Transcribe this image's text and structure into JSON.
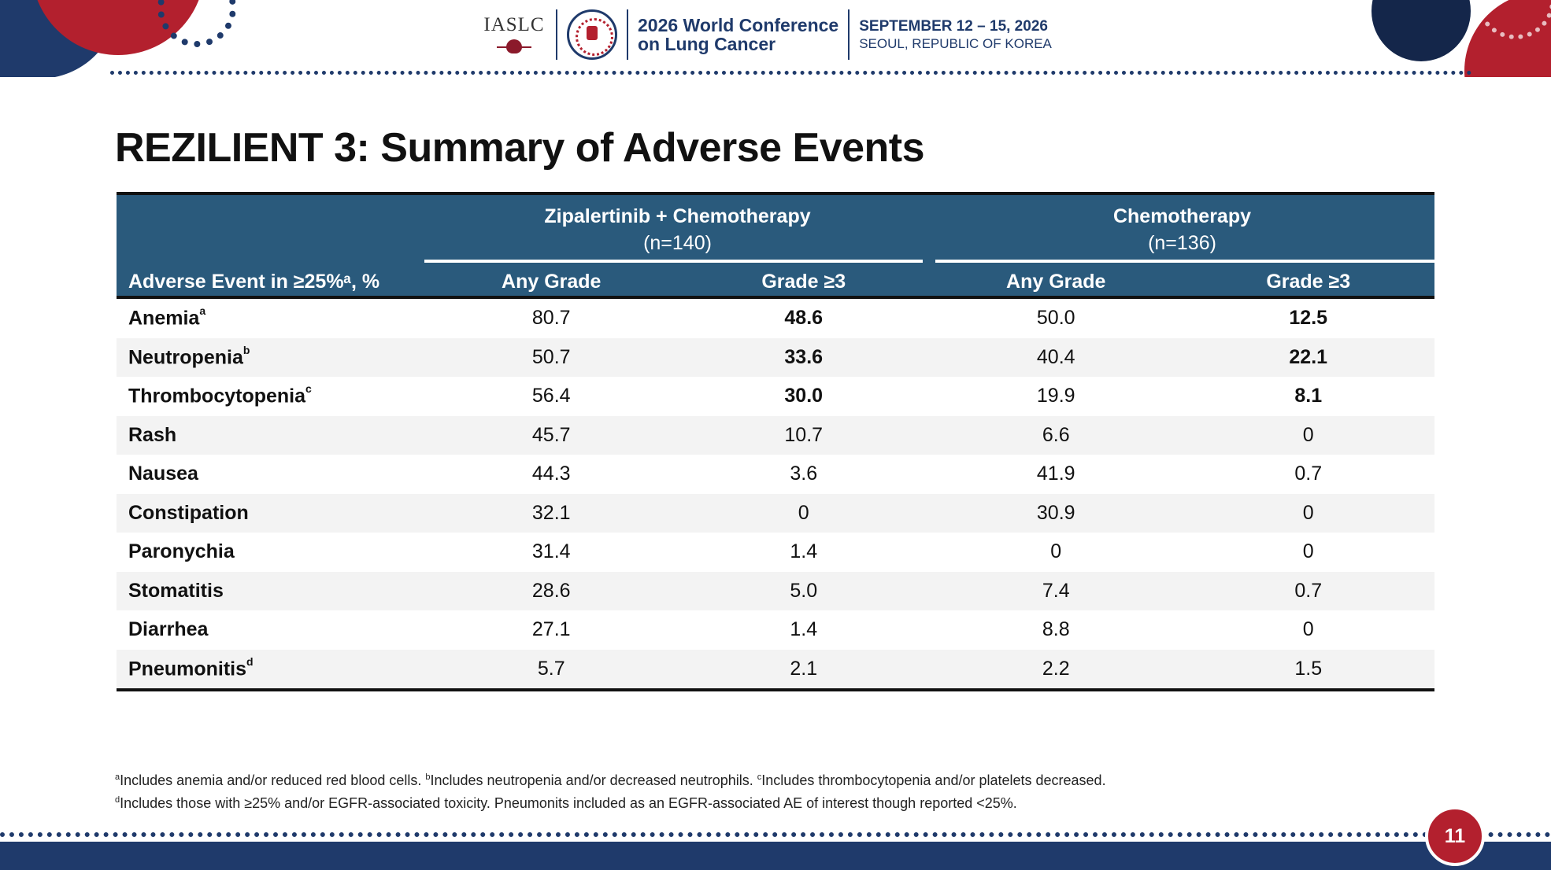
{
  "header": {
    "org": "IASLC",
    "conference_line1": "2026 World Conference",
    "conference_line2": "on Lung Cancer",
    "dates": "SEPTEMBER 12 – 15, 2026",
    "location": "SEOUL, REPUBLIC OF KOREA",
    "seal_text": "2026"
  },
  "title": "REZILIENT 3: Summary of Adverse Events",
  "table": {
    "label_header": "Adverse Event in ≥25%ᵃ, %",
    "groups": [
      {
        "name": "Zipalertinib + Chemotherapy",
        "n": "(n=140)"
      },
      {
        "name": "Chemotherapy",
        "n": "(n=136)"
      }
    ],
    "subheaders": [
      "Any Grade",
      "Grade ≥3",
      "Any Grade",
      "Grade ≥3"
    ],
    "rows": [
      {
        "event": "Anemia",
        "sup": "a",
        "values": [
          "80.7",
          "48.6",
          "50.0",
          "12.5"
        ],
        "bold": [
          false,
          true,
          false,
          true
        ]
      },
      {
        "event": "Neutropenia",
        "sup": "b",
        "values": [
          "50.7",
          "33.6",
          "40.4",
          "22.1"
        ],
        "bold": [
          false,
          true,
          false,
          true
        ]
      },
      {
        "event": "Thrombocytopenia",
        "sup": "c",
        "values": [
          "56.4",
          "30.0",
          "19.9",
          "8.1"
        ],
        "bold": [
          false,
          true,
          false,
          true
        ]
      },
      {
        "event": "Rash",
        "sup": "",
        "values": [
          "45.7",
          "10.7",
          "6.6",
          "0"
        ],
        "bold": [
          false,
          false,
          false,
          false
        ]
      },
      {
        "event": "Nausea",
        "sup": "",
        "values": [
          "44.3",
          "3.6",
          "41.9",
          "0.7"
        ],
        "bold": [
          false,
          false,
          false,
          false
        ]
      },
      {
        "event": "Constipation",
        "sup": "",
        "values": [
          "32.1",
          "0",
          "30.9",
          "0"
        ],
        "bold": [
          false,
          false,
          false,
          false
        ]
      },
      {
        "event": "Paronychia",
        "sup": "",
        "values": [
          "31.4",
          "1.4",
          "0",
          "0"
        ],
        "bold": [
          false,
          false,
          false,
          false
        ]
      },
      {
        "event": "Stomatitis",
        "sup": "",
        "values": [
          "28.6",
          "5.0",
          "7.4",
          "0.7"
        ],
        "bold": [
          false,
          false,
          false,
          false
        ]
      },
      {
        "event": "Diarrhea",
        "sup": "",
        "values": [
          "27.1",
          "1.4",
          "8.8",
          "0"
        ],
        "bold": [
          false,
          false,
          false,
          false
        ]
      },
      {
        "event": "Pneumonitis",
        "sup": "d",
        "values": [
          "5.7",
          "2.1",
          "2.2",
          "1.5"
        ],
        "bold": [
          false,
          false,
          false,
          false
        ]
      }
    ]
  },
  "footnotes": {
    "line1": [
      {
        "sup": "a",
        "text": "Includes anemia and/or reduced red blood cells. "
      },
      {
        "sup": "b",
        "text": "Includes neutropenia and/or decreased neutrophils. "
      },
      {
        "sup": "c",
        "text": "Includes thrombocytopenia and/or platelets decreased."
      }
    ],
    "line2": [
      {
        "sup": "d",
        "text": "Includes those with ≥25% and/or EGFR-associated toxicity. Pneumonits included as an EGFR-associated AE of interest though reported <25%."
      }
    ]
  },
  "page_number": "11",
  "colors": {
    "navy": "#1f3a6b",
    "red": "#b3202e",
    "table_header": "#2a5a7c"
  }
}
